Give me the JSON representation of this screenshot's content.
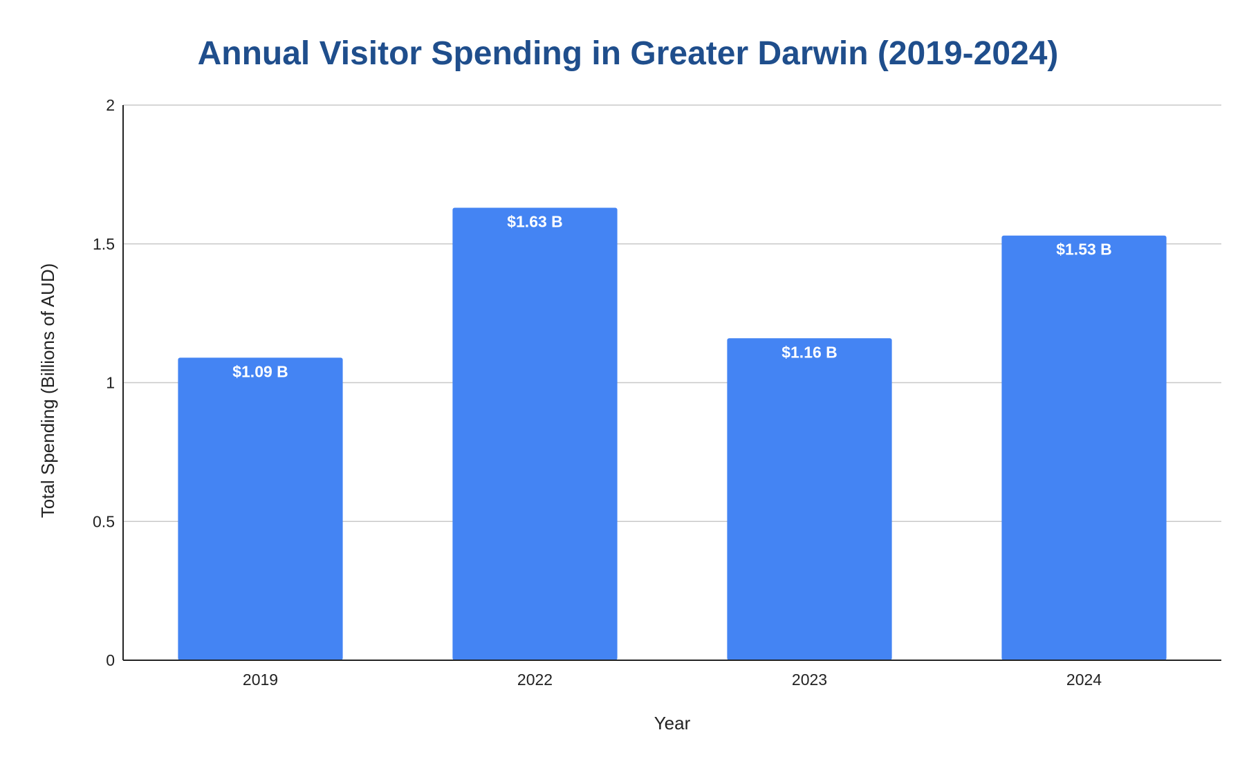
{
  "chart_data": {
    "type": "bar",
    "title": "Annual Visitor Spending in Greater Darwin (2019-2024)",
    "xlabel": "Year",
    "ylabel": "Total Spending (Billions of AUD)",
    "categories": [
      "2019",
      "2022",
      "2023",
      "2024"
    ],
    "values": [
      1.09,
      1.63,
      1.16,
      1.53
    ],
    "data_labels": [
      "$1.09 B",
      "$1.63 B",
      "$1.16 B",
      "$1.53 B"
    ],
    "ylim": [
      0,
      2
    ],
    "yticks": [
      "0",
      "0.5",
      "1",
      "1.5",
      "2"
    ],
    "grid": true,
    "legend": "none",
    "colors": {
      "bar": "#4484f3",
      "title": "#1f4e8c"
    }
  }
}
